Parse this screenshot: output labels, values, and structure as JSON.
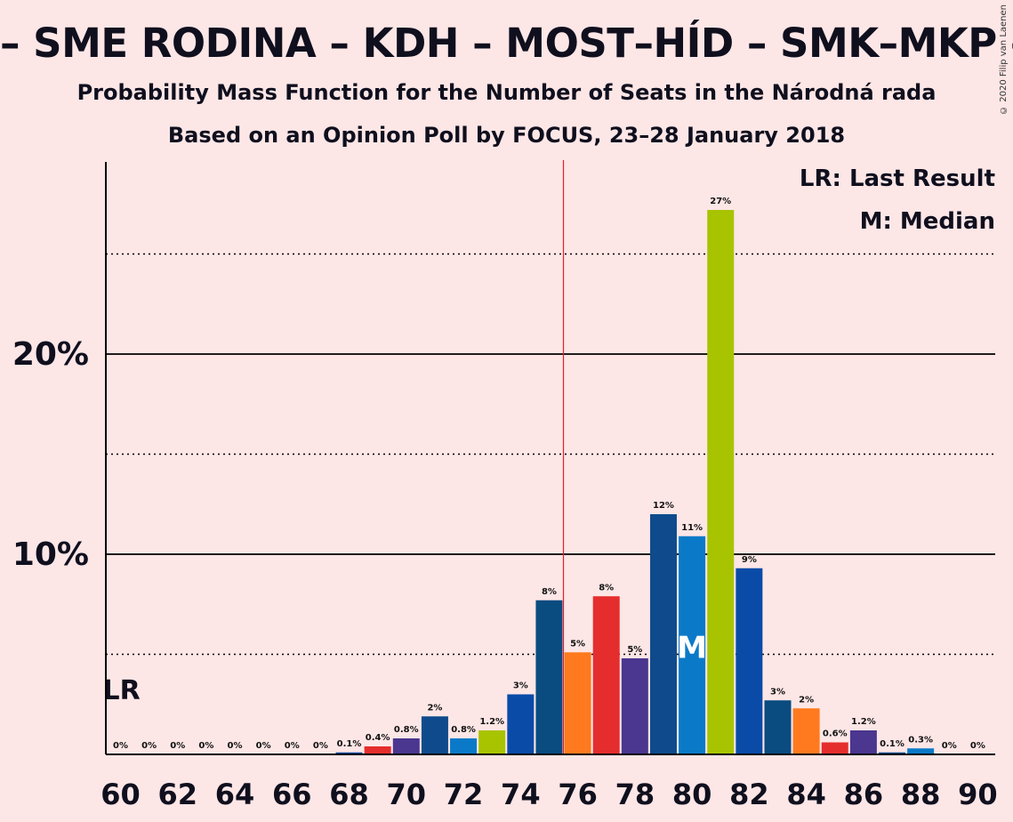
{
  "title": "– SME RODINA – KDH – MOST–HÍD – SMK–MKP – PS",
  "subtitle1": "Probability Mass Function for the Number of Seats in the Národná rada",
  "subtitle2": "Based on an Opinion Poll by FOCUS, 23–28 January 2018",
  "copyright": "© 2020 Filip van Laenen",
  "legend": {
    "lr": "LR: Last Result",
    "m": "M: Median"
  },
  "chart_data": {
    "type": "bar",
    "x": [
      60,
      61,
      62,
      63,
      64,
      65,
      66,
      67,
      68,
      69,
      70,
      71,
      72,
      73,
      74,
      75,
      76,
      77,
      78,
      79,
      80,
      81,
      82,
      83,
      84,
      85,
      86,
      87,
      88,
      89,
      90
    ],
    "values": [
      0,
      0,
      0,
      0,
      0,
      0,
      0,
      0,
      0.1,
      0.4,
      0.8,
      1.9,
      0.8,
      1.2,
      3.0,
      7.7,
      5.1,
      7.9,
      4.8,
      12.0,
      10.9,
      27.2,
      9.3,
      2.7,
      2.3,
      0.6,
      1.2,
      0.1,
      0.3,
      0,
      0
    ],
    "value_labels": [
      "0%",
      "0%",
      "0%",
      "0%",
      "0%",
      "0%",
      "0%",
      "0%",
      "0.1%",
      "0.4%",
      "0.8%",
      "2%",
      "0.8%",
      "1.2%",
      "3%",
      "8%",
      "5%",
      "8%",
      "5%",
      "12%",
      "11%",
      "27%",
      "9%",
      "3%",
      "2%",
      "0.6%",
      "1.2%",
      "0.1%",
      "0.3%",
      "0%",
      "0%"
    ],
    "colors": [
      "#0f4ba0",
      "#0f4ba0",
      "#0f4ba0",
      "#0f4ba0",
      "#0f4ba0",
      "#0f4ba0",
      "#0f4ba0",
      "#0f4ba0",
      "#0f4ba0",
      "#e52d2d",
      "#4b3690",
      "#0f4b8c",
      "#0a7ac8",
      "#a8c400",
      "#0a4ba8",
      "#0a4b80",
      "#ff7a1e",
      "#e52d2d",
      "#4b3690",
      "#0f4b8c",
      "#0a7ac8",
      "#a8c400",
      "#0a4ba8",
      "#0a4b80",
      "#ff7a1e",
      "#e52d2d",
      "#4b3690",
      "#0f4b8c",
      "#0a7ac8",
      "#a8c400",
      "#0a4ba8"
    ],
    "x_tick_labels": [
      "60",
      "62",
      "64",
      "66",
      "68",
      "70",
      "72",
      "74",
      "76",
      "78",
      "80",
      "82",
      "84",
      "86",
      "88",
      "90"
    ],
    "y_tick_labels": [
      {
        "value": 10,
        "label": "10%"
      },
      {
        "value": 20,
        "label": "20%"
      }
    ],
    "ylim": [
      0,
      29.5
    ],
    "solid_grid": [
      10,
      20
    ],
    "dotted_grid": [
      5,
      15,
      25
    ],
    "last_result": 60,
    "last_result_label": "LR",
    "median": 80,
    "median_label": "M",
    "majority_line": 75.5
  }
}
